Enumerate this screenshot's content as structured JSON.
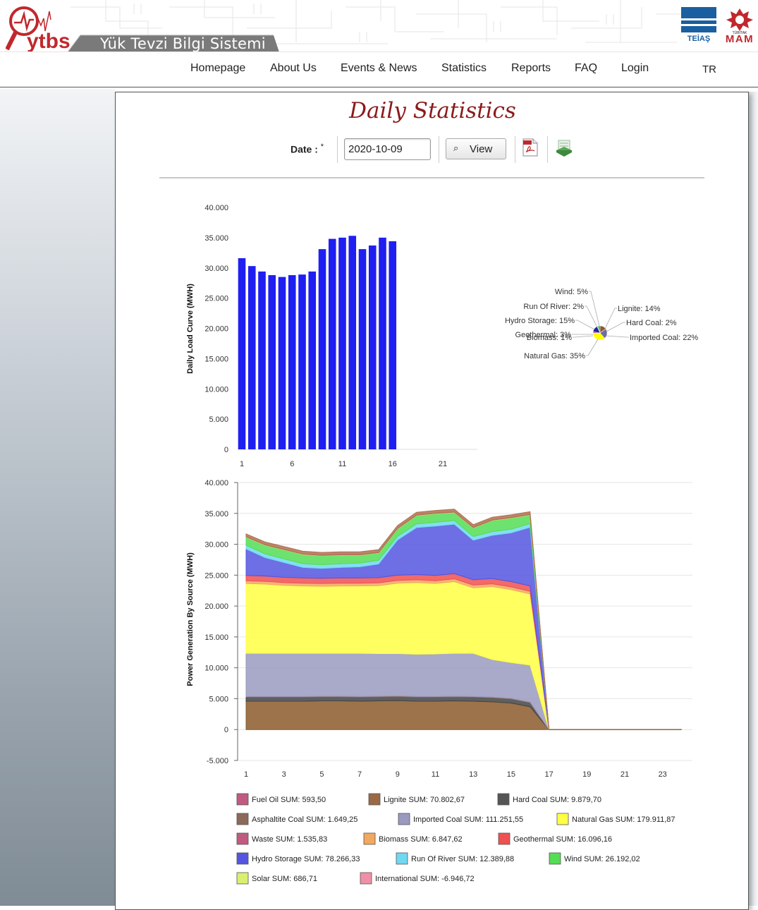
{
  "header": {
    "logo_text": "ytbs",
    "system_name": "Yük Tevzi Bilgi Sistemi",
    "partner1": "TEİAŞ",
    "partner2_small": "TÜBİTAK",
    "partner2": "MAM"
  },
  "nav": {
    "items": [
      "Homepage",
      "About Us",
      "Events & News",
      "Statistics",
      "Reports",
      "FAQ",
      "Login"
    ],
    "lang": "TR"
  },
  "page": {
    "title": "Daily Statistics",
    "date_label": "Date :",
    "required_mark": "*",
    "date_value": "2020-10-09",
    "view_label": "View"
  },
  "colors": {
    "title": "#8b1a1a",
    "bar": "#1f1ff2"
  },
  "chart_data": [
    {
      "type": "bar",
      "ylabel": "Daily Load Curve (MWH)",
      "xlabel": "",
      "x": [
        1,
        2,
        3,
        4,
        5,
        6,
        7,
        8,
        9,
        10,
        11,
        12,
        13,
        14,
        15,
        16
      ],
      "values": [
        31600,
        30300,
        29400,
        28800,
        28500,
        28800,
        28900,
        29400,
        33100,
        34800,
        35000,
        35300,
        33100,
        33700,
        35000,
        34400
      ],
      "ylim": [
        0,
        40000
      ],
      "xlim": [
        1,
        24
      ],
      "yticks": [
        "0",
        "5.000",
        "10.000",
        "15.000",
        "20.000",
        "25.000",
        "30.000",
        "35.000",
        "40.000"
      ],
      "xticks": [
        1,
        6,
        11,
        16,
        21
      ]
    },
    {
      "type": "pie",
      "slices": [
        {
          "label": "Lignite: 14%",
          "value": 14,
          "color": "#8b5a2b"
        },
        {
          "label": "Hard Coal: 2%",
          "value": 2,
          "color": "#333333"
        },
        {
          "label": "Imported Coal: 22%",
          "value": 22,
          "color": "#6d6d9e"
        },
        {
          "label": "Natural Gas: 35%",
          "value": 35,
          "color": "#ffff00"
        },
        {
          "label": "Biomass: 1%",
          "value": 1,
          "color": "#f29a4a"
        },
        {
          "label": "Geothermal: 3%",
          "value": 3,
          "color": "#e84a4a"
        },
        {
          "label": "Hydro Storage: 15%",
          "value": 15,
          "color": "#2222aa"
        },
        {
          "label": "Run Of River: 2%",
          "value": 2,
          "color": "#5fcfe8"
        },
        {
          "label": "Wind: 5%",
          "value": 5,
          "color": "#3cb83c"
        }
      ]
    },
    {
      "type": "area",
      "stacked": true,
      "ylabel": "Power Generation By Source (MWH)",
      "xlabel": "",
      "x": [
        1,
        2,
        3,
        4,
        5,
        6,
        7,
        8,
        9,
        10,
        11,
        12,
        13,
        14,
        15,
        16,
        17,
        18,
        19,
        20,
        21,
        22,
        23,
        24
      ],
      "ylim": [
        -5000,
        40000
      ],
      "yticks": [
        "-5.000",
        "0",
        "5.000",
        "10.000",
        "15.000",
        "20.000",
        "25.000",
        "30.000",
        "35.000",
        "40.000"
      ],
      "xticks": [
        1,
        3,
        5,
        7,
        9,
        11,
        13,
        15,
        17,
        19,
        21,
        23
      ],
      "series": [
        {
          "name": "Lignite",
          "color": "#8b5a2b",
          "values": [
            4600,
            4600,
            4600,
            4600,
            4650,
            4650,
            4600,
            4650,
            4700,
            4600,
            4600,
            4650,
            4600,
            4500,
            4300,
            3700,
            0,
            0,
            0,
            0,
            0,
            0,
            0,
            0
          ]
        },
        {
          "name": "Hard Coal",
          "color": "#444444",
          "values": [
            650,
            650,
            650,
            650,
            650,
            650,
            650,
            650,
            650,
            650,
            650,
            650,
            650,
            650,
            650,
            650,
            0,
            0,
            0,
            0,
            0,
            0,
            0,
            0
          ]
        },
        {
          "name": "Asphaltite Coal",
          "color": "#8b6a5a",
          "values": [
            100,
            100,
            100,
            100,
            100,
            100,
            100,
            100,
            100,
            100,
            100,
            100,
            100,
            100,
            100,
            100,
            0,
            0,
            0,
            0,
            0,
            0,
            0,
            0
          ]
        },
        {
          "name": "Imported Coal",
          "color": "#9a9ac0",
          "values": [
            7000,
            7000,
            7000,
            7000,
            6950,
            6950,
            7000,
            6900,
            6850,
            6850,
            6900,
            6950,
            7000,
            6100,
            5800,
            6000,
            0,
            0,
            0,
            0,
            0,
            0,
            0,
            0
          ]
        },
        {
          "name": "Natural Gas",
          "color": "#ffff44",
          "values": [
            11300,
            11200,
            11000,
            10900,
            10850,
            10900,
            10900,
            11000,
            11400,
            11600,
            11400,
            11600,
            10600,
            11800,
            11800,
            11500,
            0,
            0,
            0,
            0,
            0,
            0,
            0,
            0
          ]
        },
        {
          "name": "Biomass",
          "color": "#f2a860",
          "values": [
            450,
            450,
            450,
            450,
            450,
            450,
            450,
            450,
            450,
            450,
            450,
            450,
            450,
            450,
            450,
            450,
            0,
            0,
            0,
            0,
            0,
            0,
            0,
            0
          ]
        },
        {
          "name": "Geothermal",
          "color": "#f05050",
          "values": [
            850,
            850,
            850,
            850,
            850,
            850,
            850,
            850,
            850,
            850,
            850,
            850,
            850,
            850,
            850,
            850,
            0,
            0,
            0,
            0,
            0,
            0,
            0,
            0
          ]
        },
        {
          "name": "Hydro Storage",
          "color": "#5555e0",
          "values": [
            4300,
            3000,
            2400,
            1700,
            1600,
            1700,
            1800,
            2200,
            5700,
            7600,
            8000,
            8000,
            6400,
            7000,
            7900,
            9500,
            0,
            0,
            0,
            0,
            0,
            0,
            0,
            0
          ]
        },
        {
          "name": "Run Of River",
          "color": "#70d8f0",
          "values": [
            600,
            600,
            600,
            600,
            600,
            600,
            600,
            600,
            600,
            600,
            600,
            600,
            600,
            600,
            600,
            600,
            0,
            0,
            0,
            0,
            0,
            0,
            0,
            0
          ]
        },
        {
          "name": "Wind",
          "color": "#55dd55",
          "values": [
            1300,
            1400,
            1450,
            1500,
            1450,
            1400,
            1300,
            1200,
            1200,
            1350,
            1400,
            1300,
            1400,
            1800,
            1800,
            1400,
            0,
            0,
            0,
            0,
            0,
            0,
            0,
            0
          ]
        },
        {
          "name": "Solar",
          "color": "#d8f060",
          "values": [
            50,
            50,
            50,
            50,
            50,
            50,
            50,
            50,
            50,
            50,
            50,
            50,
            50,
            50,
            50,
            50,
            0,
            0,
            0,
            0,
            0,
            0,
            0,
            0
          ]
        },
        {
          "name": "Fuel Oil",
          "color": "#c06080",
          "values": [
            30,
            30,
            30,
            30,
            30,
            30,
            30,
            30,
            30,
            30,
            30,
            30,
            30,
            30,
            30,
            30,
            0,
            0,
            0,
            0,
            0,
            0,
            0,
            0
          ]
        },
        {
          "name": "International",
          "color": "#b07050",
          "values": [
            450,
            450,
            450,
            450,
            450,
            450,
            450,
            450,
            450,
            450,
            450,
            450,
            450,
            450,
            450,
            450,
            0,
            0,
            0,
            0,
            0,
            0,
            0,
            0
          ]
        }
      ],
      "legend": [
        {
          "label": "Fuel Oil SUM: 593,50",
          "color": "#c05a80"
        },
        {
          "label": "Lignite SUM: 70.802,67",
          "color": "#9a6a45"
        },
        {
          "label": "Hard Coal SUM: 9.879,70",
          "color": "#555555"
        },
        {
          "label": "Asphaltite Coal  SUM: 1.649,25",
          "color": "#8b6a5a"
        },
        {
          "label": "Imported Coal SUM: 111.251,55",
          "color": "#9a9ac0"
        },
        {
          "label": "Natural Gas SUM: 179.911,87",
          "color": "#ffff44"
        },
        {
          "label": "Waste  SUM: 1.535,83",
          "color": "#c05a80"
        },
        {
          "label": "Biomass SUM: 6.847,62",
          "color": "#f2a860"
        },
        {
          "label": "Geothermal  SUM: 16.096,16",
          "color": "#f05050"
        },
        {
          "label": "Hydro Storage SUM: 78.266,33",
          "color": "#5555e0"
        },
        {
          "label": "Run Of River  SUM: 12.389,88",
          "color": "#70d8f0"
        },
        {
          "label": "Wind  SUM: 26.192,02",
          "color": "#55dd55"
        },
        {
          "label": "Solar  SUM: 686,71",
          "color": "#d8f070"
        },
        {
          "label": "International  SUM: -6.946,72",
          "color": "#f090a8"
        }
      ]
    }
  ]
}
